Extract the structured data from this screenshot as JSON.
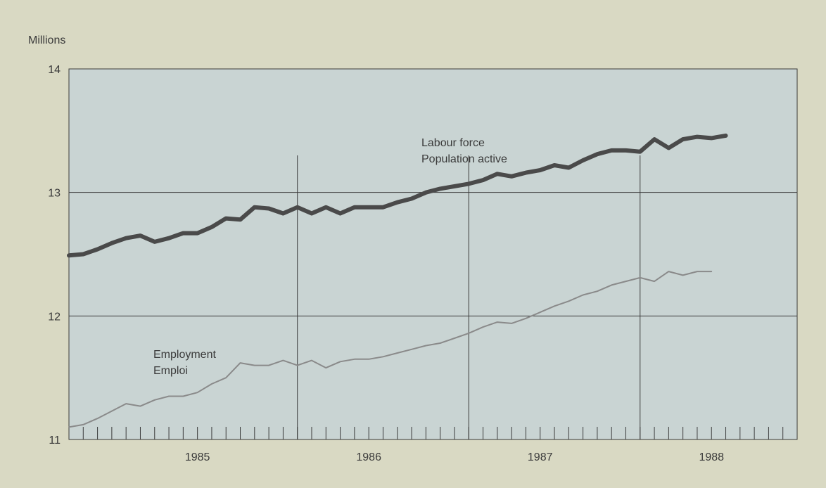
{
  "colors": {
    "page_background": "#d9d9c3",
    "plot_background": "#c9d4d3",
    "grid_color": "#3a3a3a",
    "labour_force_color": "#4a4a4a",
    "employment_color": "#8a8a8a"
  },
  "chart_data": {
    "type": "line",
    "ylabel": "Millions",
    "ylim": [
      11,
      14
    ],
    "yticks": [
      11,
      12,
      13,
      14
    ],
    "ytick_labels": [
      "11",
      "12",
      "13",
      "14"
    ],
    "x_unit": "month",
    "xlim": [
      "1984-09",
      "1988-12"
    ],
    "xtick_labels": [
      {
        "label": "1985",
        "x": "1985-06"
      },
      {
        "label": "1986",
        "x": "1986-06"
      },
      {
        "label": "1987",
        "x": "1987-06"
      },
      {
        "label": "1988",
        "x": "1988-06"
      }
    ],
    "year_dividers": [
      "1986-01",
      "1987-01",
      "1988-01"
    ],
    "grid": true,
    "series": [
      {
        "name": "Labour force / Population active",
        "label_lines": [
          "Labour force",
          "Population active"
        ],
        "style": "thick",
        "x": [
          "1984-09",
          "1984-10",
          "1984-11",
          "1984-12",
          "1985-01",
          "1985-02",
          "1985-03",
          "1985-04",
          "1985-05",
          "1985-06",
          "1985-07",
          "1985-08",
          "1985-09",
          "1985-10",
          "1985-11",
          "1985-12",
          "1986-01",
          "1986-02",
          "1986-03",
          "1986-04",
          "1986-05",
          "1986-06",
          "1986-07",
          "1986-08",
          "1986-09",
          "1986-10",
          "1986-11",
          "1986-12",
          "1987-01",
          "1987-02",
          "1987-03",
          "1987-04",
          "1987-05",
          "1987-06",
          "1987-07",
          "1987-08",
          "1987-09",
          "1987-10",
          "1987-11",
          "1987-12",
          "1988-01",
          "1988-02",
          "1988-03",
          "1988-04",
          "1988-05",
          "1988-06",
          "1988-07"
        ],
        "values": [
          12.49,
          12.5,
          12.54,
          12.59,
          12.63,
          12.65,
          12.6,
          12.63,
          12.67,
          12.67,
          12.72,
          12.79,
          12.78,
          12.88,
          12.87,
          12.83,
          12.88,
          12.83,
          12.88,
          12.83,
          12.88,
          12.88,
          12.88,
          12.92,
          12.95,
          13.0,
          13.03,
          13.05,
          13.07,
          13.1,
          13.15,
          13.13,
          13.16,
          13.18,
          13.22,
          13.2,
          13.26,
          13.31,
          13.34,
          13.34,
          13.33,
          13.43,
          13.36,
          13.43,
          13.45,
          13.44,
          13.46
        ]
      },
      {
        "name": "Employment / Emploi",
        "label_lines": [
          "Employment",
          "Emploi"
        ],
        "style": "thin",
        "x": [
          "1984-09",
          "1984-10",
          "1984-11",
          "1984-12",
          "1985-01",
          "1985-02",
          "1985-03",
          "1985-04",
          "1985-05",
          "1985-06",
          "1985-07",
          "1985-08",
          "1985-09",
          "1985-10",
          "1985-11",
          "1985-12",
          "1986-01",
          "1986-02",
          "1986-03",
          "1986-04",
          "1986-05",
          "1986-06",
          "1986-07",
          "1986-08",
          "1986-09",
          "1986-10",
          "1986-11",
          "1986-12",
          "1987-01",
          "1987-02",
          "1987-03",
          "1987-04",
          "1987-05",
          "1987-06",
          "1987-07",
          "1987-08",
          "1987-09",
          "1987-10",
          "1987-11",
          "1987-12",
          "1988-01",
          "1988-02",
          "1988-03",
          "1988-04",
          "1988-05",
          "1988-06"
        ],
        "values": [
          11.1,
          11.12,
          11.17,
          11.23,
          11.29,
          11.27,
          11.32,
          11.35,
          11.35,
          11.38,
          11.45,
          11.5,
          11.62,
          11.6,
          11.6,
          11.64,
          11.6,
          11.64,
          11.58,
          11.63,
          11.65,
          11.65,
          11.67,
          11.7,
          11.73,
          11.76,
          11.78,
          11.82,
          11.86,
          11.91,
          11.95,
          11.94,
          11.98,
          12.03,
          12.08,
          12.12,
          12.17,
          12.2,
          12.25,
          12.28,
          12.31,
          12.28,
          12.36,
          12.33,
          12.36,
          12.36
        ]
      }
    ]
  }
}
